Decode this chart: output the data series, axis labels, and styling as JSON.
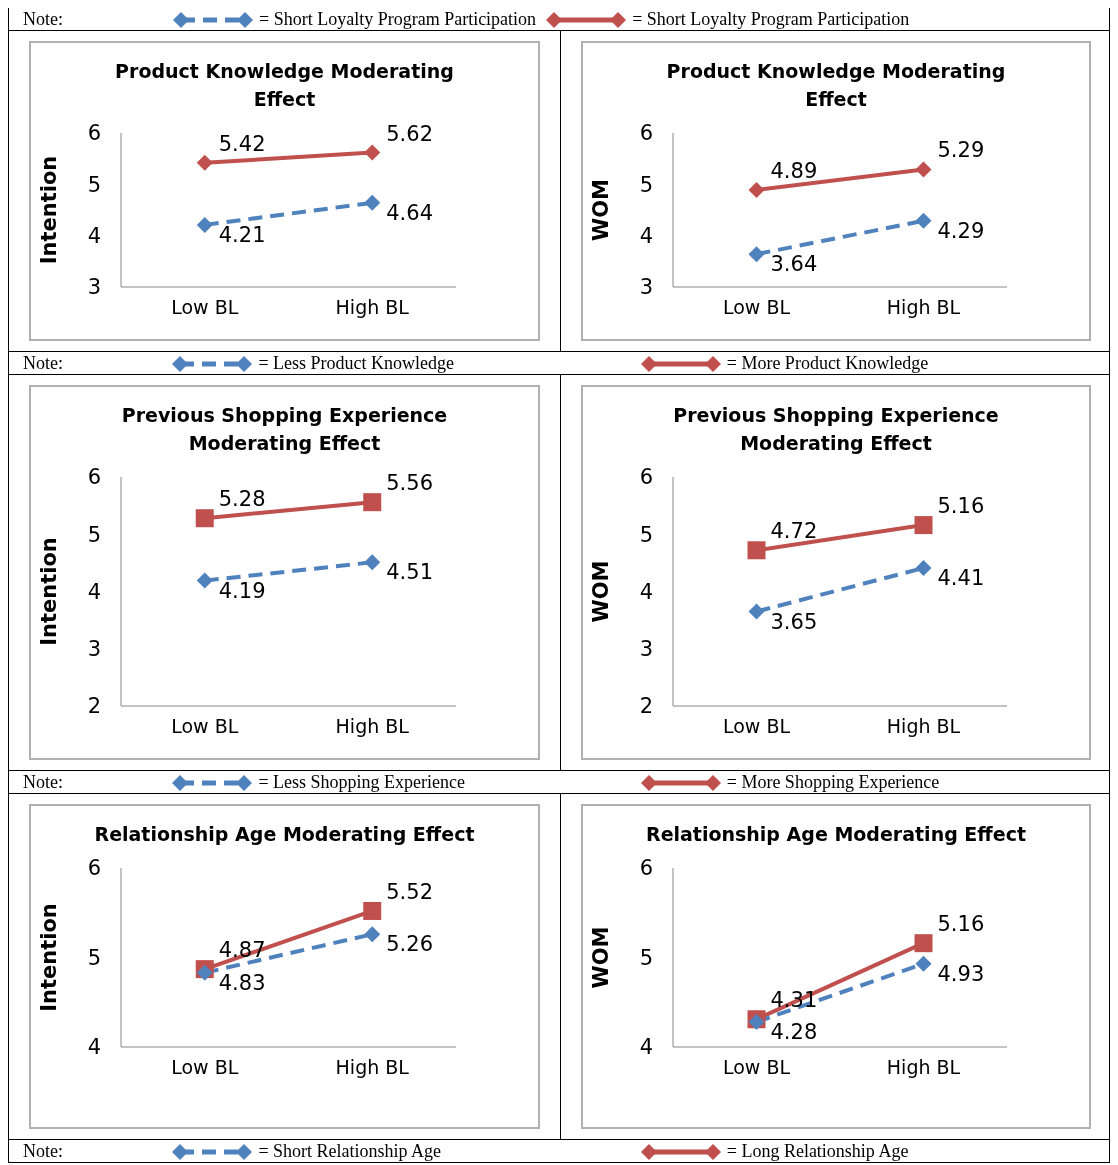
{
  "chart_data": [
    {
      "type": "line",
      "title": "Product Knowledge Moderating Effect",
      "ylabel": "Intention",
      "categories": [
        "Low BL",
        "High BL"
      ],
      "ylim": [
        3,
        6
      ],
      "yticks": [
        3,
        4,
        5,
        6
      ],
      "data_labels": true,
      "legend": "bottom",
      "legend_title": "Note:",
      "annotations": [
        "Note:",
        "= Short Loyalty Program Participation",
        "= Short Loyalty Program Participation"
      ],
      "series": [
        {
          "name": "= Less Product Knowledge",
          "color": "#4f81bd",
          "values": [
            4.21,
            4.64
          ],
          "marker": "diamond",
          "line_style": "dashed"
        },
        {
          "name": "= More Product Knowledge",
          "color": "#c0504d",
          "values": [
            5.42,
            5.62
          ],
          "marker": "diamond",
          "line_style": "solid"
        }
      ]
    },
    {
      "type": "line",
      "title": "Product Knowledge Moderating Effect",
      "ylabel": "WOM",
      "categories": [
        "Low BL",
        "High BL"
      ],
      "ylim": [
        3,
        6
      ],
      "yticks": [
        3,
        4,
        5,
        6
      ],
      "data_labels": true,
      "series": [
        {
          "color": "#4f81bd",
          "values": [
            3.64,
            4.29
          ],
          "marker": "diamond",
          "line_style": "dashed"
        },
        {
          "color": "#c0504d",
          "values": [
            4.89,
            5.29
          ],
          "marker": "diamond",
          "line_style": "solid"
        }
      ]
    },
    {
      "type": "line",
      "title": "Previous Shopping Experience Moderating Effect",
      "ylabel": "Intention",
      "categories": [
        "Low BL",
        "High BL"
      ],
      "ylim": [
        2,
        6
      ],
      "yticks": [
        2,
        3,
        4,
        5,
        6
      ],
      "data_labels": true,
      "legend": "bottom",
      "legend_title": "Note:",
      "series": [
        {
          "name": "= Less Shopping Experience",
          "color": "#4f81bd",
          "values": [
            4.19,
            4.51
          ],
          "marker": "diamond",
          "line_style": "dashed"
        },
        {
          "name": "= More Shopping Experience",
          "color": "#c0504d",
          "values": [
            5.28,
            5.56
          ],
          "marker": "square",
          "line_style": "solid"
        }
      ]
    },
    {
      "type": "line",
      "title": "Previous Shopping Experience Moderating Effect",
      "ylabel": "WOM",
      "categories": [
        "Low BL",
        "High BL"
      ],
      "ylim": [
        2,
        6
      ],
      "yticks": [
        2,
        3,
        4,
        5,
        6
      ],
      "data_labels": true,
      "series": [
        {
          "color": "#4f81bd",
          "values": [
            3.65,
            4.41
          ],
          "marker": "diamond",
          "line_style": "dashed"
        },
        {
          "color": "#c0504d",
          "values": [
            4.72,
            5.16
          ],
          "marker": "square",
          "line_style": "solid"
        }
      ]
    },
    {
      "type": "line",
      "title": "Relationship Age Moderating Effect",
      "ylabel": "Intention",
      "categories": [
        "Low BL",
        "High BL"
      ],
      "ylim": [
        4,
        6
      ],
      "yticks": [
        4,
        5,
        6
      ],
      "data_labels": true,
      "legend": "bottom",
      "legend_title": "Note:",
      "series": [
        {
          "name": "= Short Relationship Age",
          "color": "#4f81bd",
          "values": [
            4.83,
            5.26
          ],
          "marker": "diamond",
          "line_style": "dashed"
        },
        {
          "name": "= Long Relationship Age",
          "color": "#c0504d",
          "values": [
            4.87,
            5.52
          ],
          "marker": "square",
          "line_style": "solid"
        }
      ]
    },
    {
      "type": "line",
      "title": "Relationship Age Moderating Effect",
      "ylabel": "WOM",
      "categories": [
        "Low BL",
        "High BL"
      ],
      "ylim": [
        4,
        6
      ],
      "yticks": [
        4,
        5,
        6
      ],
      "data_labels": true,
      "series": [
        {
          "color": "#4f81bd",
          "values": [
            4.28,
            4.93
          ],
          "marker": "diamond",
          "line_style": "dashed"
        },
        {
          "color": "#c0504d",
          "values": [
            4.31,
            5.16
          ],
          "marker": "square",
          "line_style": "solid"
        }
      ]
    }
  ]
}
